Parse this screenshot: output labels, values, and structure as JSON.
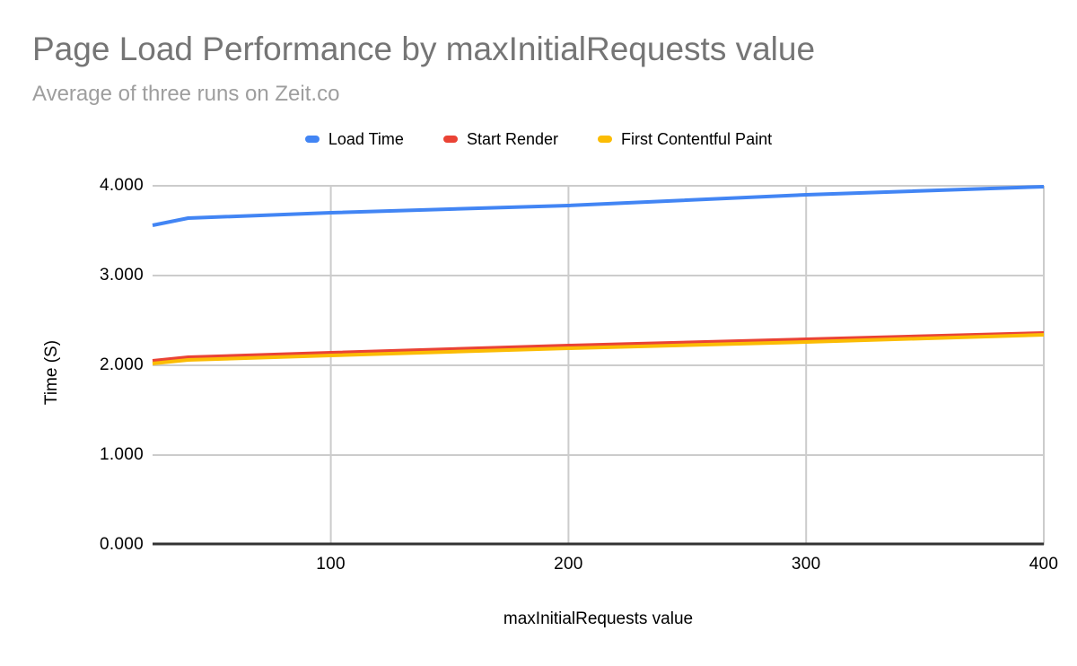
{
  "chart": {
    "title": "Page Load Performance by maxInitialRequests value",
    "subtitle": "Average of three runs on Zeit.co",
    "x_axis_title": "maxInitialRequests value",
    "y_axis_title": "Time (S)"
  },
  "colors": {
    "background": "#ffffff",
    "title_text": "#757575",
    "subtitle_text": "#9e9e9e",
    "axis_text": "#000000",
    "gridline": "#cccccc",
    "baseline": "#333333"
  },
  "chart_data": {
    "type": "line",
    "title": "Page Load Performance by maxInitialRequests value",
    "subtitle": "Average of three runs on Zeit.co",
    "xlabel": "maxInitialRequests value",
    "ylabel": "Time (S)",
    "grid": true,
    "legend_position": "top",
    "xlim": [
      25,
      400
    ],
    "ylim": [
      0,
      4
    ],
    "x": [
      25,
      40,
      100,
      200,
      300,
      400
    ],
    "series": [
      {
        "name": "Load Time",
        "color": "#4285f4",
        "values": [
          3.56,
          3.64,
          3.7,
          3.78,
          3.9,
          3.99
        ]
      },
      {
        "name": "Start Render",
        "color": "#ea4335",
        "values": [
          2.05,
          2.09,
          2.14,
          2.22,
          2.29,
          2.36
        ]
      },
      {
        "name": "First Contentful Paint",
        "color": "#fbbc04",
        "values": [
          2.02,
          2.06,
          2.11,
          2.19,
          2.26,
          2.34
        ]
      }
    ],
    "x_ticks": [
      {
        "value": 100,
        "label": "100"
      },
      {
        "value": 200,
        "label": "200"
      },
      {
        "value": 300,
        "label": "300"
      },
      {
        "value": 400,
        "label": "400"
      }
    ],
    "y_ticks": [
      {
        "value": 0,
        "label": "0.000"
      },
      {
        "value": 1,
        "label": "1.000"
      },
      {
        "value": 2,
        "label": "2.000"
      },
      {
        "value": 3,
        "label": "3.000"
      },
      {
        "value": 4,
        "label": "4.000"
      }
    ]
  }
}
